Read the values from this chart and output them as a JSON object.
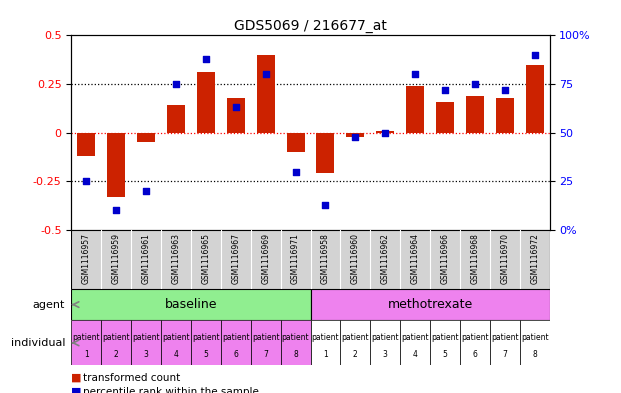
{
  "title": "GDS5069 / 216677_at",
  "samples": [
    "GSM1116957",
    "GSM1116959",
    "GSM1116961",
    "GSM1116963",
    "GSM1116965",
    "GSM1116967",
    "GSM1116969",
    "GSM1116971",
    "GSM1116958",
    "GSM1116960",
    "GSM1116962",
    "GSM1116964",
    "GSM1116966",
    "GSM1116968",
    "GSM1116970",
    "GSM1116972"
  ],
  "transformed_count": [
    -0.12,
    -0.33,
    -0.05,
    0.14,
    0.31,
    0.18,
    0.4,
    -0.1,
    -0.21,
    -0.02,
    0.01,
    0.24,
    0.16,
    0.19,
    0.18,
    0.35
  ],
  "percentile_rank": [
    25,
    10,
    20,
    75,
    88,
    63,
    80,
    30,
    13,
    48,
    50,
    80,
    72,
    75,
    72,
    90
  ],
  "bar_color": "#cc2200",
  "dot_color": "#0000cc",
  "ylim": [
    -0.5,
    0.5
  ],
  "yticks": [
    -0.5,
    -0.25,
    0.0,
    0.25,
    0.5
  ],
  "ytick_labels": [
    "-0.5",
    "-0.25",
    "0",
    "0.25",
    "0.5"
  ],
  "y2ticks": [
    0,
    25,
    50,
    75,
    100
  ],
  "y2tick_labels": [
    "0%",
    "25",
    "50",
    "75",
    "100%"
  ],
  "agent_groups": [
    {
      "label": "baseline",
      "start": 0,
      "end": 7,
      "color": "#90ee90"
    },
    {
      "label": "methotrexate",
      "start": 8,
      "end": 15,
      "color": "#ee82ee"
    }
  ],
  "patients": [
    "patient\n1",
    "patient\n2",
    "patient\n3",
    "patient\n4",
    "patient\n5",
    "patient\n6",
    "patient\n7",
    "patient\n8",
    "patient\n1",
    "patient\n2",
    "patient\n3",
    "patient\n4",
    "patient\n5",
    "patient\n6",
    "patient\n7",
    "patient\n8"
  ],
  "individual_colors": [
    "#ee82ee",
    "#ee82ee",
    "#ee82ee",
    "#ee82ee",
    "#ee82ee",
    "#ee82ee",
    "#ee82ee",
    "#ee82ee",
    "#ffffff",
    "#ffffff",
    "#ffffff",
    "#ffffff",
    "#ffffff",
    "#ffffff",
    "#ffffff",
    "#ffffff"
  ],
  "agent_label": "agent",
  "individual_label": "individual",
  "legend_bar_label": "transformed count",
  "legend_dot_label": "percentile rank within the sample",
  "background_color": "#ffffff"
}
